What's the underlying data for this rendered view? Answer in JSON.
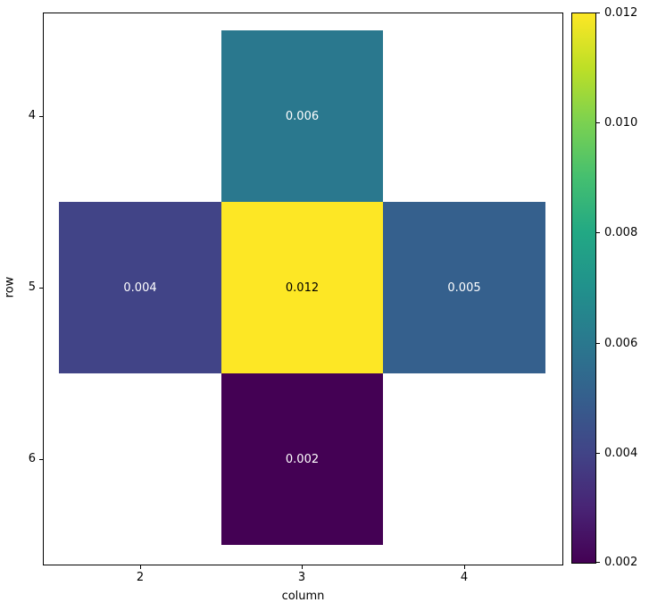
{
  "figure": {
    "background": "#ffffff"
  },
  "chart_data": {
    "type": "heatmap",
    "title": "",
    "xlabel": "column",
    "ylabel": "row",
    "x_ticks": [
      "2",
      "3",
      "4"
    ],
    "y_ticks": [
      "4",
      "5",
      "6"
    ],
    "x_range": [
      1.5,
      4.5
    ],
    "y_range": [
      3.5,
      6.5
    ],
    "grid": false,
    "cells": [
      {
        "row": 4,
        "column": 3,
        "value": 0.006,
        "label": "0.006",
        "color": "#2a788e",
        "text_color": "#ffffff"
      },
      {
        "row": 5,
        "column": 2,
        "value": 0.004,
        "label": "0.004",
        "color": "#414487",
        "text_color": "#ffffff"
      },
      {
        "row": 5,
        "column": 3,
        "value": 0.012,
        "label": "0.012",
        "color": "#fde725",
        "text_color": "#000000"
      },
      {
        "row": 5,
        "column": 4,
        "value": 0.005,
        "label": "0.005",
        "color": "#35608d",
        "text_color": "#ffffff"
      },
      {
        "row": 6,
        "column": 3,
        "value": 0.002,
        "label": "0.002",
        "color": "#440154",
        "text_color": "#ffffff"
      }
    ],
    "colorbar": {
      "colormap": "viridis",
      "vmin": 0.002,
      "vmax": 0.012,
      "tick_labels": [
        "0.012",
        "0.010",
        "0.008",
        "0.006",
        "0.004",
        "0.002"
      ],
      "gradient_stops": [
        "#440154",
        "#482475",
        "#414487",
        "#355f8d",
        "#2a788e",
        "#21918c",
        "#22a884",
        "#44bf70",
        "#7ad151",
        "#bddf26",
        "#fde725"
      ]
    }
  }
}
